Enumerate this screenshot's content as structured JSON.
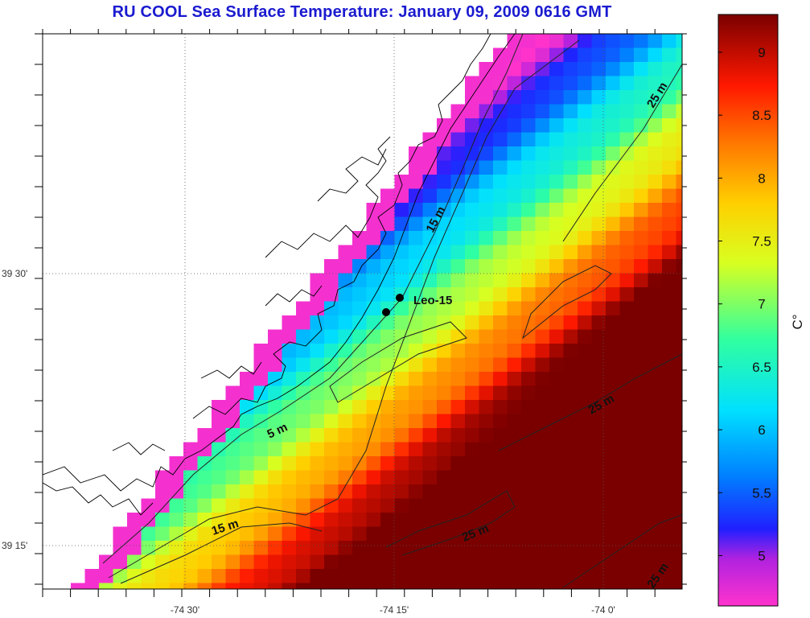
{
  "title": "RU COOL  Sea Surface Temperature:  January 09, 2009 0616 GMT",
  "axes": {
    "lat_labels": [
      "39 30'",
      "39 15'"
    ],
    "lon_labels": [
      "-74 30'",
      "-74 15'",
      "-74 0'"
    ]
  },
  "colorbar": {
    "unit_label": "C°",
    "ticks": [
      "5",
      "5.5",
      "6",
      "6.5",
      "7",
      "7.5",
      "8",
      "8.5",
      "9"
    ],
    "range": [
      4.6,
      9.3
    ],
    "colors": [
      "#ff33cc",
      "#6a1ad6",
      "#0000ff",
      "#00c8ff",
      "#22e0a0",
      "#c8ff20",
      "#ffe000",
      "#ff8000",
      "#ff1000",
      "#8b0000"
    ]
  },
  "contour_labels": [
    "25 m",
    "15 m",
    "5 m",
    "25 m",
    "15 m",
    "25 m",
    "25 m"
  ],
  "station": {
    "label": "Leo-15"
  }
}
